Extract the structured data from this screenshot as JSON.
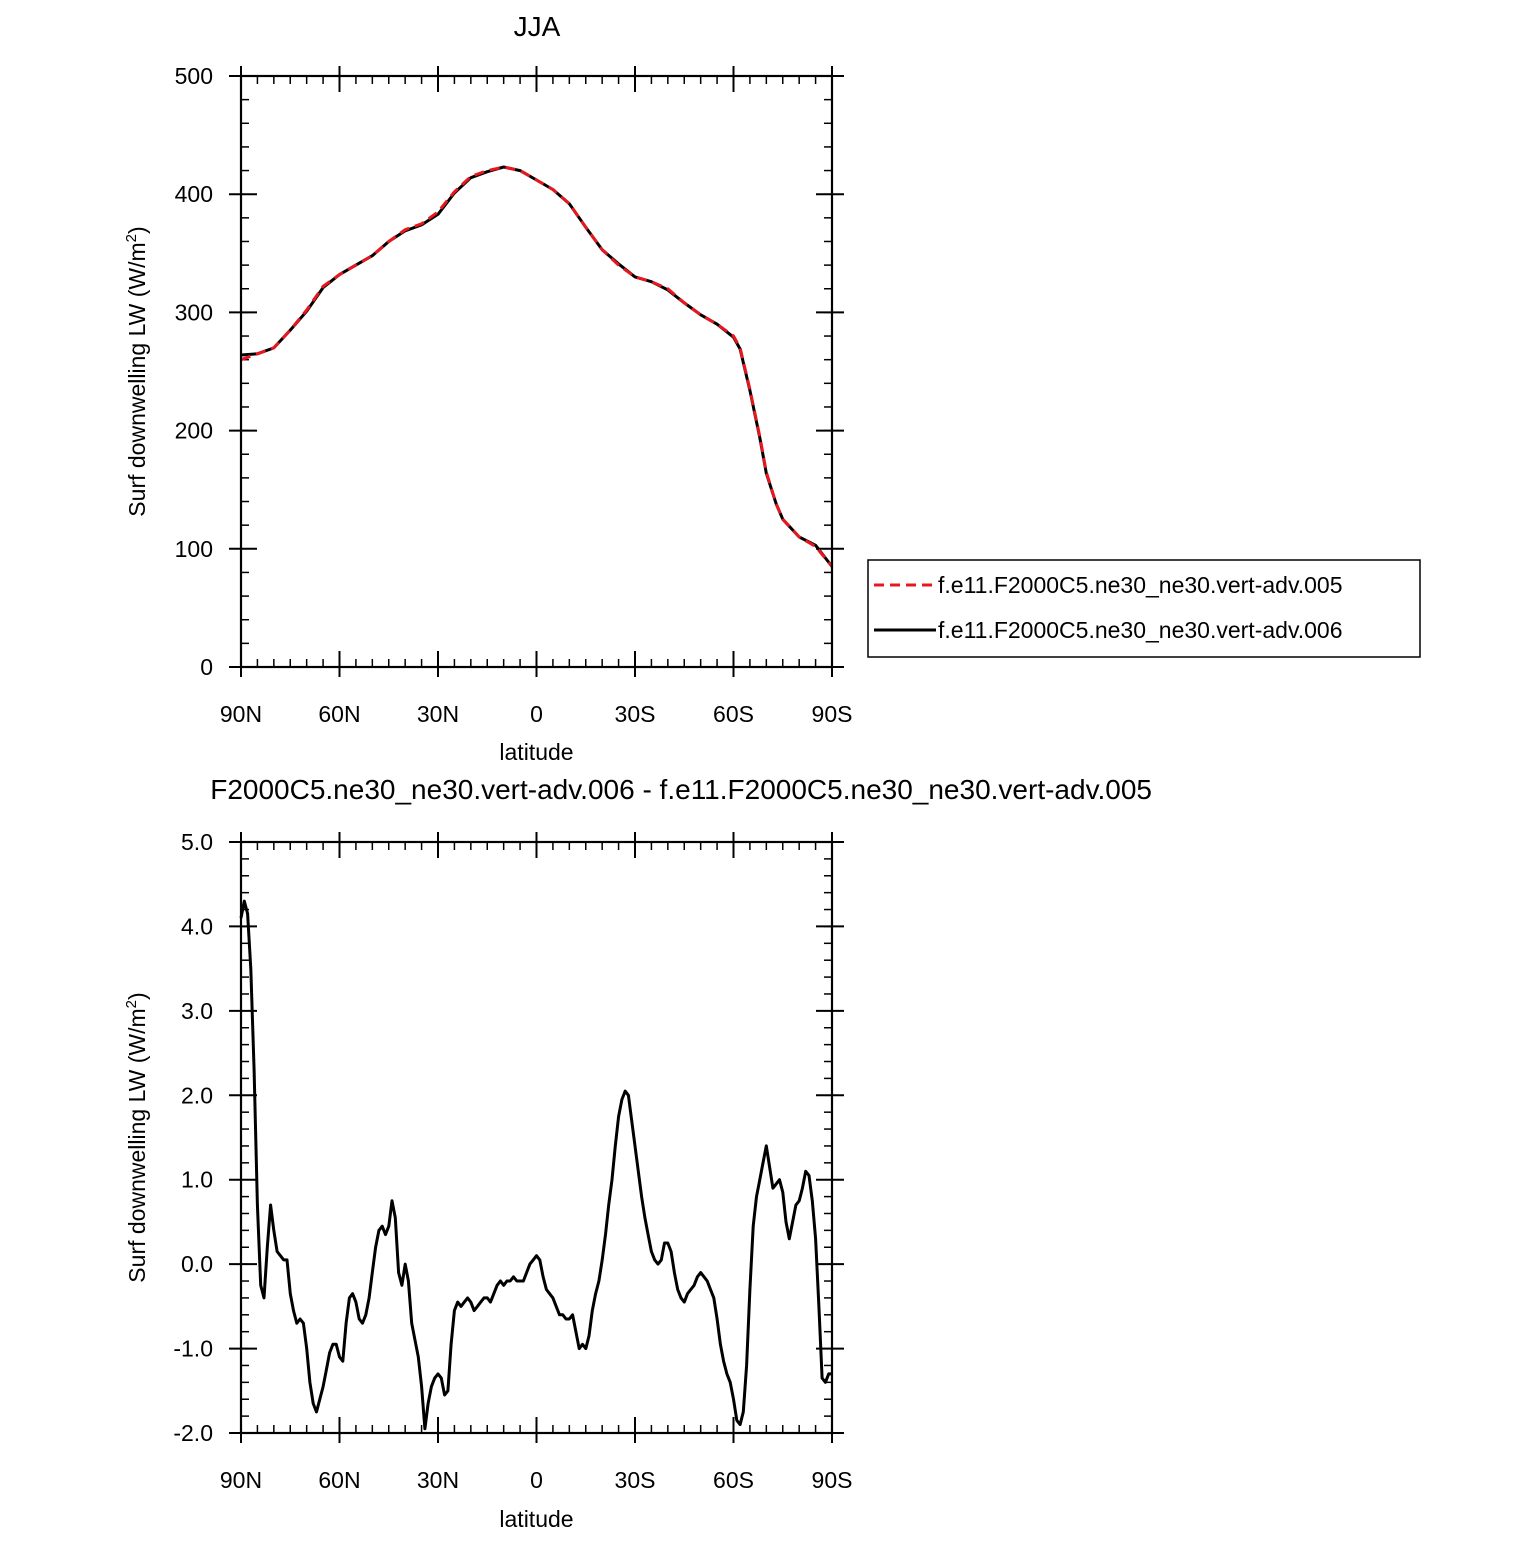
{
  "chart_data": [
    {
      "type": "line",
      "title": "JJA",
      "xlabel": "latitude",
      "ylabel": "Surf downwelling LW (W/m²)",
      "xlim": [
        90,
        -90
      ],
      "ylim": [
        0,
        500
      ],
      "x_ticks": [
        {
          "value": 90,
          "label": "90N"
        },
        {
          "value": 60,
          "label": "60N"
        },
        {
          "value": 30,
          "label": "30N"
        },
        {
          "value": 0,
          "label": "0"
        },
        {
          "value": -30,
          "label": "30S"
        },
        {
          "value": -60,
          "label": "60S"
        },
        {
          "value": -90,
          "label": "90S"
        }
      ],
      "y_ticks": [
        {
          "value": 0,
          "label": "0"
        },
        {
          "value": 100,
          "label": "100"
        },
        {
          "value": 200,
          "label": "200"
        },
        {
          "value": 300,
          "label": "300"
        },
        {
          "value": 400,
          "label": "400"
        },
        {
          "value": 500,
          "label": "500"
        }
      ],
      "grid": false,
      "legend_position": "right",
      "series": [
        {
          "name": "f.e11.F2000C5.ne30_ne30.vert-adv.005",
          "color": "#e8171f",
          "dash": "dashed",
          "x": [
            90,
            85,
            80,
            75,
            70,
            65,
            60,
            55,
            50,
            45,
            40,
            35,
            30,
            25,
            20,
            15,
            10,
            5,
            0,
            -5,
            -10,
            -15,
            -20,
            -25,
            -30,
            -35,
            -40,
            -45,
            -50,
            -55,
            -60,
            -62,
            -65,
            -68,
            -70,
            -73,
            -75,
            -80,
            -85,
            -90
          ],
          "y": [
            260,
            265,
            270,
            285,
            302,
            322,
            332,
            340,
            348,
            360,
            370,
            375,
            385,
            402,
            415,
            420,
            423,
            420,
            412,
            404,
            392,
            372,
            353,
            340,
            330,
            326,
            320,
            308,
            298,
            290,
            280,
            270,
            235,
            195,
            165,
            138,
            125,
            110,
            102,
            85
          ]
        },
        {
          "name": "f.e11.F2000C5.ne30_ne30.vert-adv.006",
          "color": "#000000",
          "dash": "solid",
          "x": [
            90,
            85,
            80,
            75,
            70,
            65,
            60,
            55,
            50,
            45,
            40,
            35,
            30,
            25,
            20,
            15,
            10,
            5,
            0,
            -5,
            -10,
            -15,
            -20,
            -25,
            -30,
            -35,
            -40,
            -45,
            -50,
            -55,
            -60,
            -62,
            -65,
            -68,
            -70,
            -73,
            -75,
            -80,
            -85,
            -90
          ],
          "y": [
            264,
            265,
            270,
            285,
            301,
            321,
            332,
            340,
            348,
            360,
            369,
            374,
            383,
            401,
            414,
            419,
            423,
            420,
            412,
            404,
            392,
            372,
            353,
            341,
            330,
            326,
            319,
            308,
            298,
            290,
            279,
            269,
            234,
            194,
            164,
            138,
            125,
            110,
            103,
            85
          ]
        }
      ]
    },
    {
      "type": "line",
      "title": "F2000C5.ne30_ne30.vert-adv.006 - f.e11.F2000C5.ne30_ne30.vert-adv.005",
      "xlabel": "latitude",
      "ylabel": "Surf downwelling LW (W/m²)",
      "xlim": [
        90,
        -90
      ],
      "ylim": [
        -2.0,
        5.0
      ],
      "x_ticks": [
        {
          "value": 90,
          "label": "90N"
        },
        {
          "value": 60,
          "label": "60N"
        },
        {
          "value": 30,
          "label": "30N"
        },
        {
          "value": 0,
          "label": "0"
        },
        {
          "value": -30,
          "label": "30S"
        },
        {
          "value": -60,
          "label": "60S"
        },
        {
          "value": -90,
          "label": "90S"
        }
      ],
      "y_ticks": [
        {
          "value": -2.0,
          "label": "-2.0"
        },
        {
          "value": -1.0,
          "label": "-1.0"
        },
        {
          "value": 0.0,
          "label": "0.0"
        },
        {
          "value": 1.0,
          "label": "1.0"
        },
        {
          "value": 2.0,
          "label": "2.0"
        },
        {
          "value": 3.0,
          "label": "3.0"
        },
        {
          "value": 4.0,
          "label": "4.0"
        },
        {
          "value": 5.0,
          "label": "5.0"
        }
      ],
      "grid": false,
      "series": [
        {
          "color": "#000000",
          "dash": "solid",
          "x": [
            90,
            89,
            88,
            87,
            86,
            85,
            84,
            83,
            82,
            81,
            80,
            79,
            78,
            77,
            76,
            75,
            74,
            73,
            72,
            71,
            70,
            69,
            68,
            67,
            66,
            65,
            64,
            63,
            62,
            61,
            60,
            59,
            58,
            57,
            56,
            55,
            54,
            53,
            52,
            51,
            50,
            49,
            48,
            47,
            46,
            45,
            44,
            43,
            42,
            41,
            40,
            39,
            38,
            37,
            36,
            35,
            34,
            33,
            32,
            31,
            30,
            29,
            28,
            27,
            26,
            25,
            24,
            23,
            22,
            21,
            20,
            19,
            18,
            17,
            16,
            15,
            14,
            13,
            12,
            11,
            10,
            9,
            8,
            7,
            6,
            5,
            4,
            3,
            2,
            1,
            0,
            -1,
            -2,
            -3,
            -4,
            -5,
            -6,
            -7,
            -8,
            -9,
            -10,
            -11,
            -12,
            -13,
            -14,
            -15,
            -16,
            -17,
            -18,
            -19,
            -20,
            -21,
            -22,
            -23,
            -24,
            -25,
            -26,
            -27,
            -28,
            -29,
            -30,
            -31,
            -32,
            -33,
            -34,
            -35,
            -36,
            -37,
            -38,
            -39,
            -40,
            -41,
            -42,
            -43,
            -44,
            -45,
            -46,
            -47,
            -48,
            -49,
            -50,
            -51,
            -52,
            -53,
            -54,
            -55,
            -56,
            -57,
            -58,
            -59,
            -60,
            -61,
            -62,
            -63,
            -64,
            -65,
            -66,
            -67,
            -68,
            -69,
            -70,
            -71,
            -72,
            -73,
            -74,
            -75,
            -76,
            -77,
            -78,
            -79,
            -80,
            -81,
            -82,
            -83,
            -84,
            -85,
            -86,
            -87,
            -88,
            -89,
            -90
          ],
          "y": [
            4.1,
            4.3,
            4.15,
            3.5,
            2.3,
            0.7,
            -0.25,
            -0.4,
            0.2,
            0.7,
            0.4,
            0.15,
            0.1,
            0.05,
            0.05,
            -0.35,
            -0.55,
            -0.7,
            -0.65,
            -0.7,
            -1.0,
            -1.4,
            -1.65,
            -1.75,
            -1.6,
            -1.45,
            -1.25,
            -1.05,
            -0.95,
            -0.95,
            -1.1,
            -1.15,
            -0.7,
            -0.4,
            -0.35,
            -0.45,
            -0.65,
            -0.7,
            -0.6,
            -0.4,
            -0.1,
            0.2,
            0.4,
            0.45,
            0.35,
            0.45,
            0.75,
            0.55,
            -0.1,
            -0.25,
            0.0,
            -0.2,
            -0.7,
            -0.9,
            -1.1,
            -1.45,
            -1.95,
            -1.65,
            -1.45,
            -1.35,
            -1.3,
            -1.35,
            -1.55,
            -1.5,
            -0.95,
            -0.55,
            -0.45,
            -0.5,
            -0.45,
            -0.4,
            -0.45,
            -0.55,
            -0.5,
            -0.45,
            -0.4,
            -0.4,
            -0.45,
            -0.35,
            -0.25,
            -0.2,
            -0.25,
            -0.2,
            -0.2,
            -0.15,
            -0.2,
            -0.2,
            -0.2,
            -0.1,
            0.0,
            0.05,
            0.1,
            0.05,
            -0.15,
            -0.3,
            -0.35,
            -0.4,
            -0.5,
            -0.6,
            -0.6,
            -0.65,
            -0.65,
            -0.6,
            -0.8,
            -1.0,
            -0.95,
            -1.0,
            -0.85,
            -0.55,
            -0.35,
            -0.2,
            0.05,
            0.35,
            0.7,
            1.0,
            1.4,
            1.75,
            1.95,
            2.05,
            2.0,
            1.7,
            1.4,
            1.1,
            0.8,
            0.55,
            0.35,
            0.15,
            0.05,
            0.0,
            0.05,
            0.25,
            0.25,
            0.15,
            -0.1,
            -0.3,
            -0.4,
            -0.45,
            -0.35,
            -0.3,
            -0.25,
            -0.15,
            -0.1,
            -0.15,
            -0.2,
            -0.3,
            -0.4,
            -0.65,
            -0.95,
            -1.15,
            -1.3,
            -1.4,
            -1.6,
            -1.85,
            -1.9,
            -1.75,
            -1.2,
            -0.3,
            0.45,
            0.8,
            1.0,
            1.2,
            1.4,
            1.15,
            0.9,
            0.95,
            1.0,
            0.85,
            0.5,
            0.3,
            0.5,
            0.7,
            0.75,
            0.9,
            1.1,
            1.05,
            0.75,
            0.3,
            -0.5,
            -1.35,
            -1.4,
            -1.3,
            -1.3
          ]
        }
      ]
    }
  ]
}
